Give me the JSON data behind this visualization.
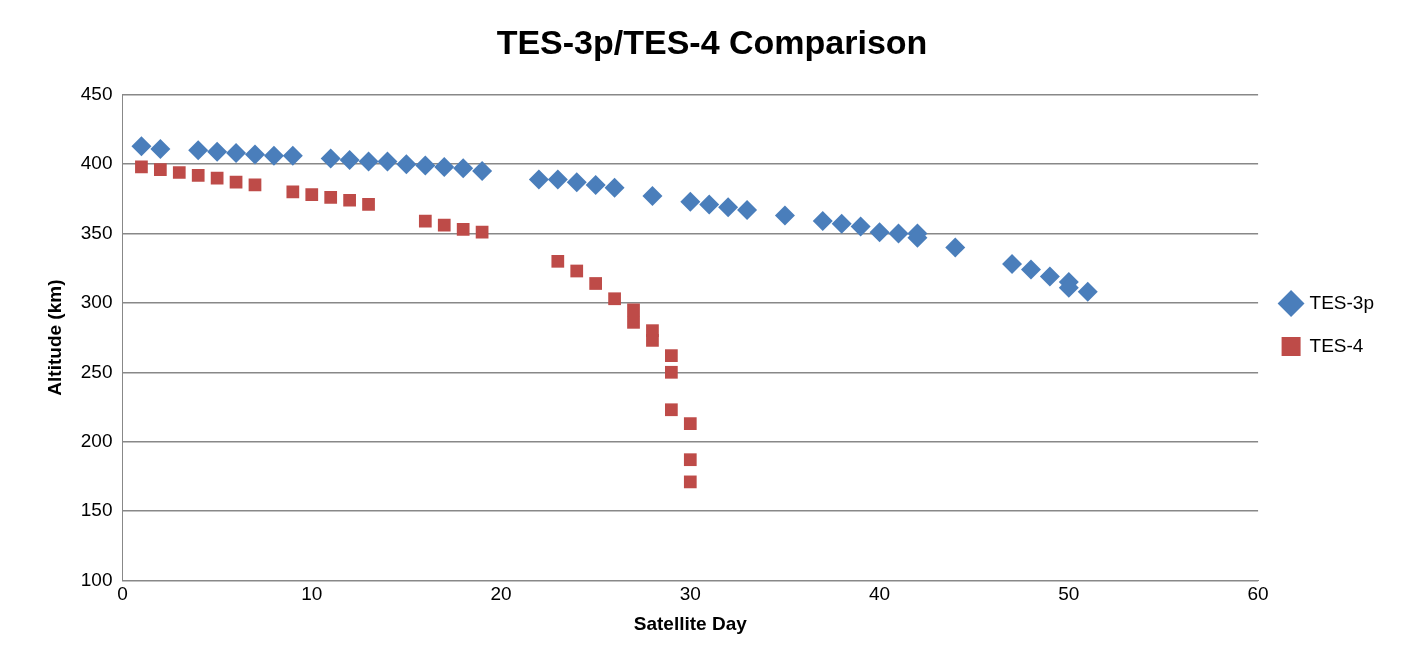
{
  "chart_data": {
    "type": "scatter",
    "title": "TES-3p/TES-4 Comparison",
    "xlabel": "Satellite Day",
    "ylabel": "Altitude (km)",
    "xlim": [
      0,
      60
    ],
    "xticks": [
      0,
      10,
      20,
      30,
      40,
      50,
      60
    ],
    "ylim": [
      100,
      450
    ],
    "yticks": [
      100,
      150,
      200,
      250,
      300,
      350,
      400,
      450
    ],
    "grid": "y",
    "legend": "right",
    "series": [
      {
        "name": "TES-3p",
        "color": "#4a7ebb",
        "marker": "diamond",
        "x": [
          1,
          2,
          4,
          5,
          6,
          7,
          8,
          9,
          11,
          12,
          13,
          14,
          15,
          16,
          17,
          18,
          19,
          22,
          23,
          24,
          25,
          26,
          28,
          30,
          31,
          32,
          33,
          35,
          37,
          38,
          39,
          40,
          41,
          42,
          42,
          44,
          47,
          48,
          49,
          50,
          50,
          51
        ],
        "values": [
          413,
          411,
          410,
          409,
          408,
          407,
          406,
          406,
          404,
          403,
          402,
          402,
          400,
          399,
          398,
          397,
          395,
          389,
          389,
          387,
          385,
          383,
          377,
          373,
          371,
          369,
          367,
          363,
          359,
          357,
          355,
          351,
          350,
          350,
          347,
          340,
          328,
          324,
          319,
          315,
          311,
          308
        ]
      },
      {
        "name": "TES-4",
        "color": "#be4b48",
        "marker": "square",
        "x": [
          1,
          2,
          3,
          4,
          5,
          6,
          7,
          9,
          10,
          11,
          12,
          13,
          16,
          17,
          18,
          19,
          23,
          24,
          25,
          26,
          27,
          27,
          28,
          28,
          29,
          29,
          29,
          30,
          30,
          30
        ],
        "values": [
          398,
          396,
          394,
          392,
          390,
          387,
          385,
          380,
          378,
          376,
          374,
          371,
          359,
          356,
          353,
          351,
          330,
          323,
          314,
          303,
          295,
          286,
          280,
          273,
          262,
          250,
          223,
          213,
          187,
          171
        ]
      }
    ]
  }
}
